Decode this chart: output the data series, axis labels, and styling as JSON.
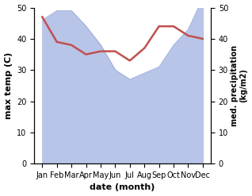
{
  "months": [
    "Jan",
    "Feb",
    "Mar",
    "Apr",
    "May",
    "Jun",
    "Jul",
    "Aug",
    "Sep",
    "Oct",
    "Nov",
    "Dec"
  ],
  "month_indices": [
    0,
    1,
    2,
    3,
    4,
    5,
    6,
    7,
    8,
    9,
    10,
    11
  ],
  "precipitation": [
    46,
    49,
    49,
    44,
    38,
    30,
    27,
    29,
    31,
    38,
    43,
    53
  ],
  "temperature": [
    47,
    39,
    38,
    35,
    36,
    36,
    33,
    37,
    44,
    44,
    41,
    40
  ],
  "temp_color": "#c0504d",
  "precip_fill_color": "#b8c4e8",
  "precip_edge_color": "#9aaad8",
  "ylabel_left": "max temp (C)",
  "ylabel_right": "med. precipitation\n(kg/m2)",
  "xlabel": "date (month)",
  "ylim_left": [
    0,
    50
  ],
  "ylim_right": [
    0,
    50
  ],
  "yticks_left": [
    0,
    10,
    20,
    30,
    40,
    50
  ],
  "yticks_right": [
    0,
    10,
    20,
    30,
    40,
    50
  ],
  "background_color": "#ffffff",
  "line_width": 1.8
}
